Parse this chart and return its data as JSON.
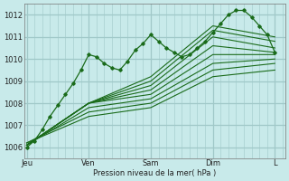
{
  "bg_color": "#c8eaea",
  "grid_color": "#a0c8c8",
  "line_color": "#1a6b1a",
  "ylabel_text": "Pression niveau de la mer( hPa )",
  "ylim": [
    1005.5,
    1012.5
  ],
  "yticks": [
    1006,
    1007,
    1008,
    1009,
    1010,
    1011,
    1012
  ],
  "x_day_labels": [
    "Jeu",
    "Ven",
    "Sam",
    "Dim",
    "L"
  ],
  "x_day_positions": [
    0,
    24,
    48,
    72,
    96
  ],
  "xlim": [
    -1,
    100
  ],
  "figsize": [
    3.2,
    2.0
  ],
  "dpi": 100,
  "series": [
    {
      "x": [
        0,
        3,
        6,
        9,
        12,
        15,
        18,
        21,
        24,
        27,
        30,
        33,
        36,
        39,
        42,
        45,
        48,
        51,
        54,
        57,
        60,
        63,
        66,
        69,
        72,
        75,
        78,
        81,
        84,
        87,
        90,
        93,
        96
      ],
      "y": [
        1006.0,
        1006.3,
        1006.8,
        1007.4,
        1007.9,
        1008.4,
        1008.9,
        1009.5,
        1010.2,
        1010.1,
        1009.8,
        1009.6,
        1009.5,
        1009.9,
        1010.4,
        1010.7,
        1011.1,
        1010.8,
        1010.5,
        1010.3,
        1010.1,
        1010.2,
        1010.5,
        1010.8,
        1011.2,
        1011.6,
        1012.0,
        1012.2,
        1012.2,
        1011.9,
        1011.5,
        1011.1,
        1010.3
      ],
      "marker": true,
      "lw": 0.9
    },
    {
      "x": [
        0,
        24,
        48,
        72,
        96
      ],
      "y": [
        1006.1,
        1008.0,
        1009.2,
        1011.5,
        1011.0
      ],
      "marker": false,
      "lw": 0.8
    },
    {
      "x": [
        0,
        24,
        48,
        72,
        96
      ],
      "y": [
        1006.1,
        1008.0,
        1009.0,
        1011.3,
        1010.8
      ],
      "marker": false,
      "lw": 0.8
    },
    {
      "x": [
        0,
        24,
        48,
        72,
        96
      ],
      "y": [
        1006.1,
        1008.0,
        1008.8,
        1011.0,
        1010.5
      ],
      "marker": false,
      "lw": 0.8
    },
    {
      "x": [
        0,
        24,
        48,
        72,
        96
      ],
      "y": [
        1006.1,
        1008.0,
        1008.6,
        1010.6,
        1010.3
      ],
      "marker": false,
      "lw": 0.8
    },
    {
      "x": [
        0,
        24,
        48,
        72,
        96
      ],
      "y": [
        1006.1,
        1008.0,
        1008.4,
        1010.2,
        1010.2
      ],
      "marker": false,
      "lw": 0.8
    },
    {
      "x": [
        0,
        24,
        48,
        72,
        96
      ],
      "y": [
        1006.1,
        1007.8,
        1008.2,
        1009.8,
        1010.0
      ],
      "marker": false,
      "lw": 0.8
    },
    {
      "x": [
        0,
        24,
        48,
        72,
        96
      ],
      "y": [
        1006.2,
        1007.6,
        1008.0,
        1009.5,
        1009.8
      ],
      "marker": false,
      "lw": 0.8
    },
    {
      "x": [
        0,
        24,
        48,
        72,
        96
      ],
      "y": [
        1006.2,
        1007.4,
        1007.8,
        1009.2,
        1009.5
      ],
      "marker": false,
      "lw": 0.8
    }
  ]
}
